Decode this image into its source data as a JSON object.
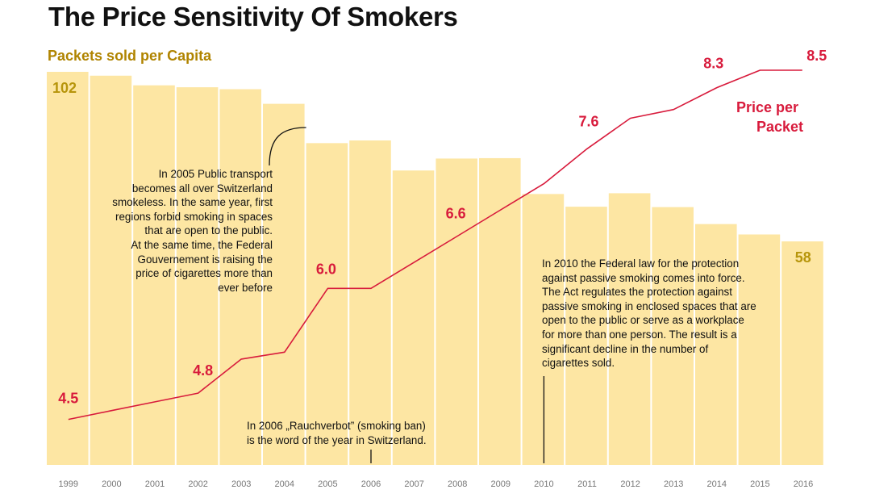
{
  "title": "The Price Sensitivity Of Smokers",
  "colors": {
    "bars": "#fde6a3",
    "price_line": "#d81b3c",
    "bar_label": "#b08400"
  },
  "chart_data": {
    "type": "bar",
    "categories": [
      "1999",
      "2000",
      "2001",
      "2002",
      "2003",
      "2004",
      "2005",
      "2006",
      "2007",
      "2008",
      "2009",
      "2010",
      "2011",
      "2012",
      "2013",
      "2014",
      "2015",
      "2016"
    ],
    "series": [
      {
        "name": "Packets sold per Capita",
        "type": "bar",
        "values": [
          102,
          101,
          98.5,
          98,
          97.5,
          93.7,
          83.5,
          84.2,
          76.4,
          79.5,
          79.6,
          70.3,
          67,
          70.5,
          66.9,
          62.5,
          59.8,
          58
        ],
        "labels": [
          {
            "index": 0,
            "text": "102"
          },
          {
            "index": 17,
            "text": "58"
          }
        ]
      },
      {
        "name": "Price per Packet",
        "type": "line",
        "values": [
          4.5,
          4.6,
          4.7,
          4.8,
          5.19,
          5.27,
          6.0,
          6.0,
          6.3,
          6.6,
          6.9,
          7.2,
          7.6,
          7.95,
          8.05,
          8.3,
          8.5,
          8.5
        ],
        "labels": [
          {
            "index": 0,
            "text": "4.5"
          },
          {
            "index": 3,
            "text": "4.8"
          },
          {
            "index": 6,
            "text": "6.0"
          },
          {
            "index": 9,
            "text": "6.6"
          },
          {
            "index": 12,
            "text": "7.6"
          },
          {
            "index": 15,
            "text": "8.3"
          },
          {
            "index": 17,
            "text": "8.5"
          }
        ]
      }
    ],
    "bar_ylim": [
      0,
      102
    ],
    "price_ylim": [
      4.2,
      8.5
    ],
    "legend": [
      "Price per",
      "Packet"
    ],
    "grid": false,
    "annotations": [
      {
        "year": "2004",
        "lines": [
          "In 2005 Public transport",
          "becomes all over Switzerland",
          "smokeless. In the same year, first",
          "regions forbid smoking in spaces",
          "that are open to the public.",
          "At the same time, the Federal",
          "Gouvernement is raising the",
          "price of cigarettes more than",
          "ever before"
        ]
      },
      {
        "year": "2006",
        "lines": [
          "In 2006 „Rauchverbot” (smoking ban)",
          "is the word of the year in Switzerland."
        ]
      },
      {
        "year": "2010",
        "lines": [
          "In 2010 the Federal law for the protection",
          "against passive smoking comes into force.",
          "The Act regulates the protection against",
          "passive smoking in enclosed spaces that are",
          "open to the public or serve as a workplace",
          "for more than one person. The result is a",
          "significant decline in the number of",
          "cigarettes sold."
        ]
      }
    ]
  }
}
